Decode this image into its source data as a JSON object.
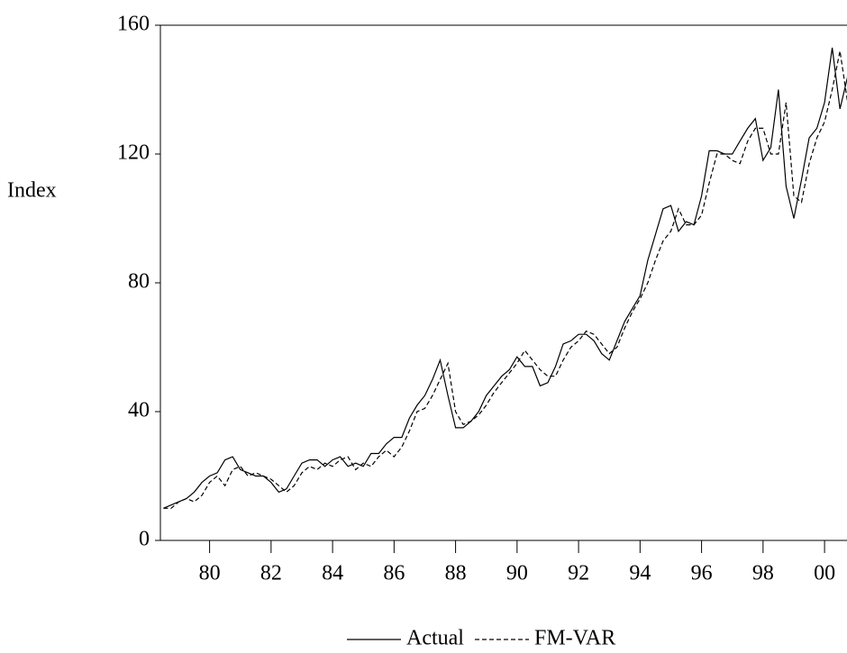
{
  "chart_data": {
    "type": "line",
    "ylabel": "Index",
    "x": [
      1978.5,
      1978.75,
      1979,
      1979.25,
      1979.5,
      1979.75,
      1980,
      1980.25,
      1980.5,
      1980.75,
      1981,
      1981.25,
      1981.5,
      1981.75,
      1982,
      1982.25,
      1982.5,
      1982.75,
      1983,
      1983.25,
      1983.5,
      1983.75,
      1984,
      1984.25,
      1984.5,
      1984.75,
      1985,
      1985.25,
      1985.5,
      1985.75,
      1986,
      1986.25,
      1986.5,
      1986.75,
      1987,
      1987.25,
      1987.5,
      1987.75,
      1988,
      1988.25,
      1988.5,
      1988.75,
      1989,
      1989.25,
      1989.5,
      1989.75,
      1990,
      1990.25,
      1990.5,
      1990.75,
      1991,
      1991.25,
      1991.5,
      1991.75,
      1992,
      1992.25,
      1992.5,
      1992.75,
      1993,
      1993.25,
      1993.5,
      1993.75,
      1994,
      1994.25,
      1994.5,
      1994.75,
      1995,
      1995.25,
      1995.5,
      1995.75,
      1996,
      1996.25,
      1996.5,
      1996.75,
      1997,
      1997.25,
      1997.5,
      1997.75,
      1998,
      1998.25,
      1998.5,
      1998.75,
      1999,
      1999.25,
      1999.5,
      1999.75,
      2000,
      2000.25,
      2000.5,
      2000.75
    ],
    "series": [
      {
        "name": "Actual",
        "color": "#000000",
        "dash": false,
        "values": [
          10,
          11,
          12,
          13,
          15,
          18,
          20,
          21,
          25,
          26,
          22,
          21,
          20,
          20,
          18,
          15,
          16,
          20,
          24,
          25,
          25,
          23,
          25,
          26,
          23,
          24,
          23,
          27,
          27,
          30,
          32,
          32,
          38,
          42,
          45,
          50,
          56,
          45,
          35,
          35,
          37,
          40,
          45,
          48,
          51,
          53,
          57,
          54,
          54,
          48,
          49,
          54,
          61,
          62,
          64,
          64,
          62,
          58,
          56,
          62,
          68,
          72,
          76,
          87,
          95,
          103,
          104,
          96,
          99,
          98,
          107,
          121,
          121,
          120,
          120,
          124,
          128,
          131,
          118,
          122,
          140,
          110,
          100,
          112,
          125,
          128,
          136,
          153,
          134,
          144
        ]
      },
      {
        "name": "FM-VAR",
        "color": "#000000",
        "dash": true,
        "values": [
          10,
          10,
          12,
          13,
          12,
          14,
          18,
          20,
          17,
          22,
          23,
          20,
          21,
          20,
          19,
          17,
          15,
          17,
          21,
          23,
          22,
          24,
          23,
          25,
          26,
          22,
          24,
          23,
          26,
          28,
          26,
          29,
          34,
          40,
          41,
          45,
          50,
          55,
          40,
          36,
          37,
          39,
          42,
          46,
          49,
          52,
          55,
          59,
          56,
          53,
          51,
          51,
          56,
          60,
          62,
          65,
          64,
          61,
          58,
          60,
          66,
          71,
          75,
          80,
          87,
          93,
          96,
          103,
          98,
          98,
          101,
          111,
          120,
          120,
          118,
          117,
          124,
          128,
          128,
          120,
          120,
          136,
          107,
          105,
          117,
          125,
          130,
          140,
          152,
          136
        ]
      }
    ],
    "xlim": [
      1978.4,
      2000.73
    ],
    "xticks": [
      {
        "value": 1980,
        "label": "80"
      },
      {
        "value": 1982,
        "label": "82"
      },
      {
        "value": 1984,
        "label": "84"
      },
      {
        "value": 1986,
        "label": "86"
      },
      {
        "value": 1988,
        "label": "88"
      },
      {
        "value": 1990,
        "label": "90"
      },
      {
        "value": 1992,
        "label": "92"
      },
      {
        "value": 1994,
        "label": "94"
      },
      {
        "value": 1996,
        "label": "96"
      },
      {
        "value": 1998,
        "label": "98"
      },
      {
        "value": 2000,
        "label": "00"
      }
    ],
    "ylim": [
      0,
      160
    ],
    "yticks": [
      0,
      40,
      80,
      120,
      160
    ],
    "grid": false,
    "legend": "bottom"
  }
}
